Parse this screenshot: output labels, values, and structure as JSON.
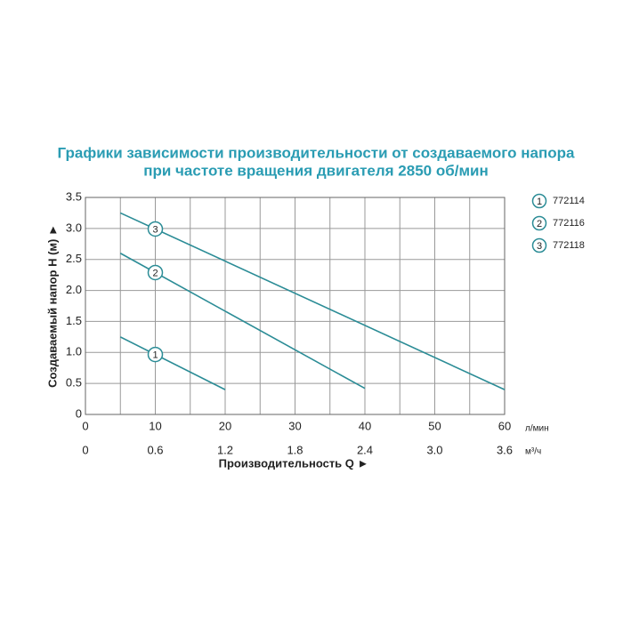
{
  "chart_data": {
    "type": "line",
    "title": [
      "Графики зависимости производительности от создаваемого напора",
      "при частоте вращения двигателя 2850 об/мин"
    ],
    "xlabel": "Производительность Q ►",
    "ylabel": "Создаваемый напор H (м) ►",
    "xunit": "л/мин",
    "x2unit": "м³/ч",
    "xlim": [
      0,
      60
    ],
    "xticks": [
      0,
      10,
      20,
      30,
      40,
      50,
      60
    ],
    "xgrid": [
      5,
      10,
      15,
      20,
      25,
      30,
      35,
      40,
      45,
      50,
      55,
      60
    ],
    "x2lim": [
      0,
      3.6
    ],
    "x2ticks": [
      0,
      0.6,
      1.2,
      1.8,
      2.4,
      {
        "value": 3,
        "label": "3.0"
      },
      3.6
    ],
    "ylim": [
      0,
      3.5
    ],
    "yticks": [
      0,
      0.5,
      {
        "value": 1,
        "label": "1.0"
      },
      1.5,
      {
        "value": 2,
        "label": "2.0"
      },
      2.5,
      {
        "value": 3,
        "label": "3.0"
      },
      3.5
    ],
    "grid": true,
    "legend": "right",
    "series": [
      {
        "name": "772114",
        "marker": "1",
        "color": "#2b8c96",
        "x": [
          5,
          20
        ],
        "values": [
          1.25,
          0.4
        ],
        "marker_x": 10
      },
      {
        "name": "772116",
        "marker": "2",
        "color": "#2b8c96",
        "x": [
          5,
          40
        ],
        "values": [
          2.6,
          0.42
        ],
        "marker_x": 10
      },
      {
        "name": "772118",
        "marker": "3",
        "color": "#2b8c96",
        "x": [
          5,
          60
        ],
        "values": [
          3.25,
          0.4
        ],
        "marker_x": 10
      }
    ]
  }
}
